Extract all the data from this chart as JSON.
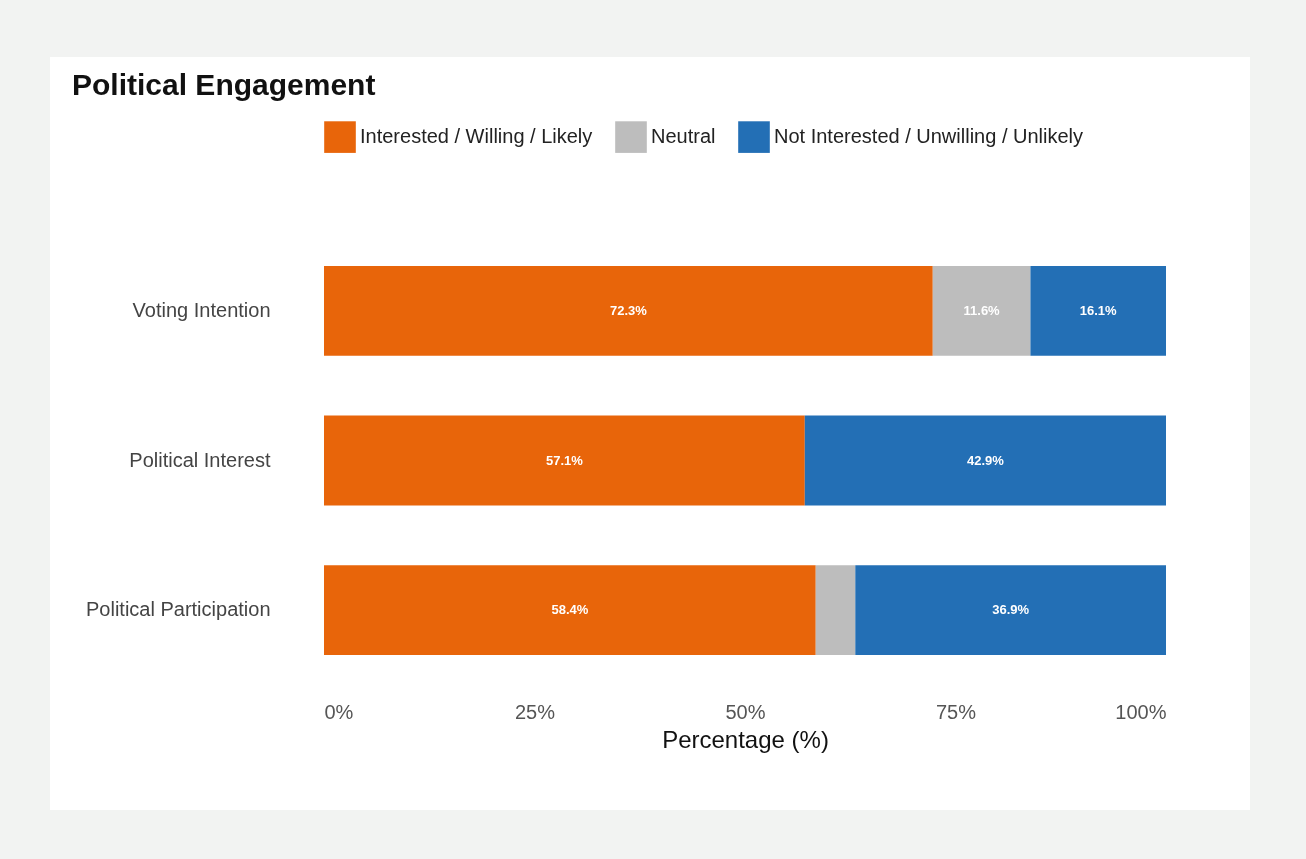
{
  "chart_data": {
    "type": "bar",
    "orientation": "horizontal",
    "stacked": true,
    "title": "Political Engagement",
    "xlabel": "Percentage (%)",
    "categories": [
      "Voting Intention",
      "Political Interest",
      "Political Participation"
    ],
    "series": [
      {
        "name": "Interested / Willing / Likely",
        "color": "#e8650a",
        "values": [
          72.3,
          57.1,
          58.4
        ],
        "value_labels": [
          "72.3%",
          "57.1%",
          "58.4%"
        ]
      },
      {
        "name": "Neutral",
        "color": "#bdbdbd",
        "values": [
          11.6,
          null,
          4.7
        ],
        "value_labels": [
          "11.6%",
          null,
          null
        ]
      },
      {
        "name": "Not Interested / Unwilling / Unlikely",
        "color": "#236fb5",
        "values": [
          16.1,
          42.9,
          36.9
        ],
        "value_labels": [
          "16.1%",
          "42.9%",
          "36.9%"
        ]
      }
    ],
    "xlim": [
      0,
      100
    ],
    "xticks": [
      {
        "value": 0,
        "label": "0%"
      },
      {
        "value": 25,
        "label": "25%"
      },
      {
        "value": 50,
        "label": "50%"
      },
      {
        "value": 75,
        "label": "75%"
      },
      {
        "value": 100,
        "label": "100%"
      }
    ],
    "grid": false,
    "legend": "top"
  }
}
